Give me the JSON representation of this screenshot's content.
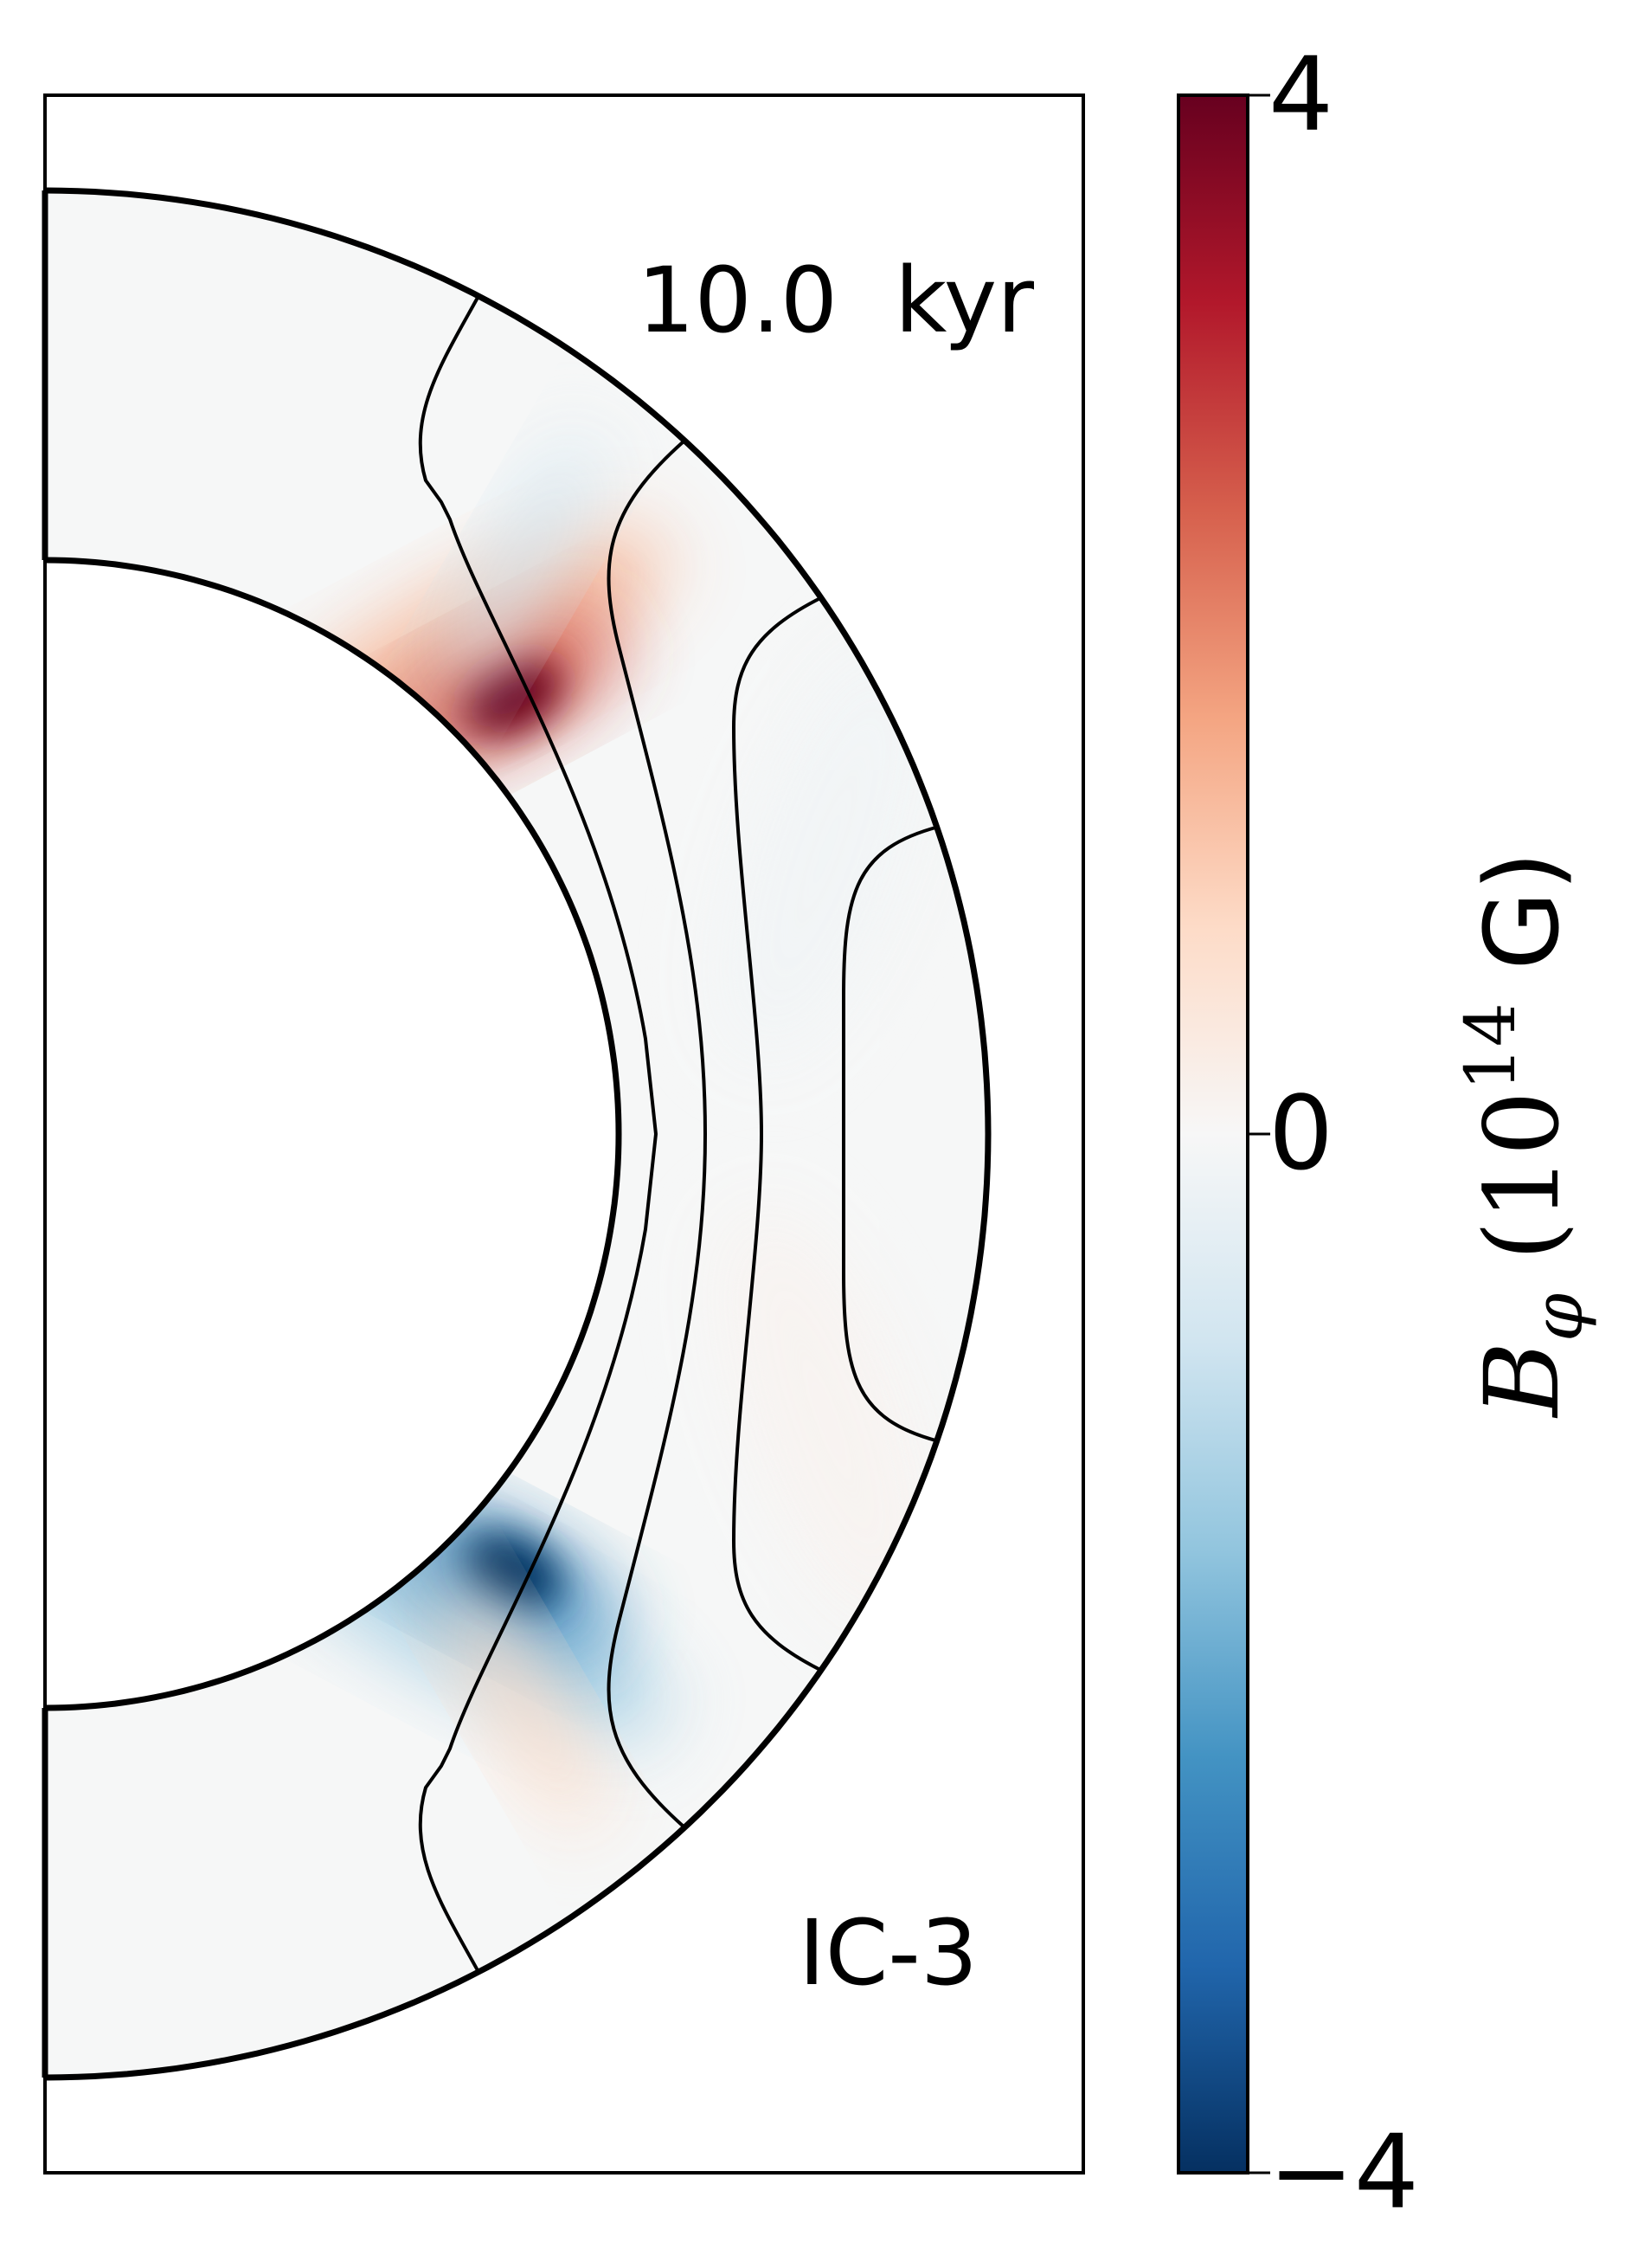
{
  "chart_data": {
    "type": "heatmap",
    "geometry": "meridional-half-annulus",
    "time_annotation": "10.0  kyr",
    "model_label": "IC-3",
    "colorbar": {
      "label_symbol": "B",
      "label_subscript": "φ",
      "label_paren_open": "(",
      "label_base": "10",
      "label_exponent": "14",
      "label_unit": "G)",
      "ticks": [
        {
          "value": 4,
          "label": "4"
        },
        {
          "value": 0,
          "label": "0"
        },
        {
          "value": -4,
          "label": "−4"
        }
      ],
      "vmin": -4,
      "vmax": 4,
      "colormap": "RdBu_r",
      "stops": [
        "#053061",
        "#2166ac",
        "#4393c3",
        "#92c5de",
        "#d1e5f0",
        "#f7f7f7",
        "#fddbc7",
        "#f4a582",
        "#d6604d",
        "#b2182b",
        "#67001f"
      ]
    },
    "field_features": [
      {
        "name": "north-positive-core",
        "value": 4.0,
        "theta_deg": 46,
        "r_frac": 0.18
      },
      {
        "name": "north-negative-lobe",
        "value": -1.0,
        "theta_deg": 40,
        "r_frac": 0.45
      },
      {
        "name": "south-negative-core",
        "value": -4.0,
        "theta_deg": 134,
        "r_frac": 0.18
      },
      {
        "name": "south-positive-lobe",
        "value": 1.0,
        "theta_deg": 140,
        "r_frac": 0.45
      }
    ],
    "field_lines": 4
  }
}
